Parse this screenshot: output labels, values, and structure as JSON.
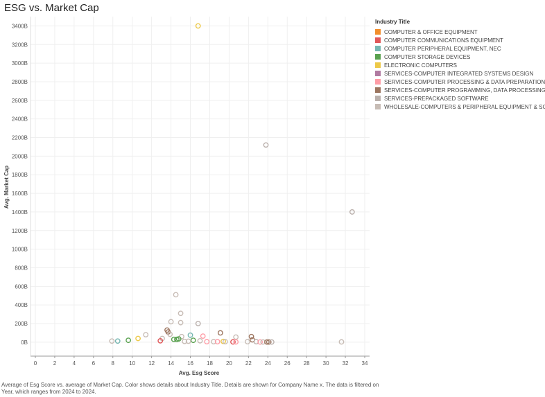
{
  "page": {
    "title": "ESG vs. Market Cap",
    "caption": "Average of Esg Score vs. average of Market Cap.  Color shows details about Industry Title.  Details are shown for Company Name x. The data is filtered on Year, which ranges from 2024 to 2024."
  },
  "legend": {
    "title": "Industry Title",
    "items": [
      {
        "label": "COMPUTER & OFFICE EQUIPMENT",
        "color": "#f28e2b"
      },
      {
        "label": "COMPUTER COMMUNICATIONS EQUIPMENT",
        "color": "#e15759"
      },
      {
        "label": "COMPUTER PERIPHERAL EQUIPMENT, NEC",
        "color": "#76b7b2"
      },
      {
        "label": "COMPUTER STORAGE DEVICES",
        "color": "#59a14f"
      },
      {
        "label": "ELECTRONIC COMPUTERS",
        "color": "#edc948"
      },
      {
        "label": "SERVICES-COMPUTER INTEGRATED SYSTEMS DESIGN",
        "color": "#b07aa1"
      },
      {
        "label": "SERVICES-COMPUTER PROCESSING & DATA PREPARATION",
        "color": "#ff9da7"
      },
      {
        "label": "SERVICES-COMPUTER PROGRAMMING, DATA PROCESSING, ETC.",
        "color": "#9c755f"
      },
      {
        "label": "SERVICES-PREPACKAGED SOFTWARE",
        "color": "#bab0ac"
      },
      {
        "label": "WHOLESALE-COMPUTERS & PERIPHERAL EQUIPMENT & SOFTWARE",
        "color": "#c7bcb5"
      }
    ]
  },
  "chart_data": {
    "type": "scatter",
    "title": "ESG vs. Market Cap",
    "xlabel": "Avg. Esg Score",
    "ylabel": "Avg. Market Cap",
    "xlim": [
      -0.5,
      34.5
    ],
    "ylim": [
      -150,
      3500
    ],
    "x_ticks": [
      0,
      2,
      4,
      6,
      8,
      10,
      12,
      14,
      16,
      18,
      20,
      22,
      24,
      26,
      28,
      30,
      32,
      34
    ],
    "x_tick_labels": [
      "0",
      "2",
      "4",
      "6",
      "8",
      "10",
      "12",
      "14",
      "16",
      "18",
      "20",
      "22",
      "24",
      "26",
      "28",
      "30",
      "32",
      "34"
    ],
    "y_ticks": [
      0,
      200,
      400,
      600,
      800,
      1000,
      1200,
      1400,
      1600,
      1800,
      2000,
      2200,
      2400,
      2600,
      2800,
      3000,
      3200,
      3400
    ],
    "y_tick_labels": [
      "0B",
      "200B",
      "400B",
      "600B",
      "800B",
      "1000B",
      "1200B",
      "1400B",
      "1600B",
      "1800B",
      "2000B",
      "2200B",
      "2400B",
      "2600B",
      "2800B",
      "3000B",
      "3200B",
      "3400B"
    ],
    "y_unit": "B",
    "grid": true,
    "legend_position": "right",
    "points": [
      {
        "x": 16.8,
        "y": 3400,
        "industry": "ELECTRONIC COMPUTERS"
      },
      {
        "x": 23.8,
        "y": 2120,
        "industry": "SERVICES-PREPACKAGED SOFTWARE"
      },
      {
        "x": 32.7,
        "y": 1400,
        "industry": "SERVICES-PREPACKAGED SOFTWARE"
      },
      {
        "x": 14.5,
        "y": 510,
        "industry": "WHOLESALE-COMPUTERS & PERIPHERAL EQUIPMENT & SOFTWARE"
      },
      {
        "x": 15.0,
        "y": 310,
        "industry": "WHOLESALE-COMPUTERS & PERIPHERAL EQUIPMENT & SOFTWARE"
      },
      {
        "x": 14.0,
        "y": 220,
        "industry": "WHOLESALE-COMPUTERS & PERIPHERAL EQUIPMENT & SOFTWARE"
      },
      {
        "x": 15.0,
        "y": 210,
        "industry": "WHOLESALE-COMPUTERS & PERIPHERAL EQUIPMENT & SOFTWARE"
      },
      {
        "x": 16.8,
        "y": 200,
        "industry": "SERVICES-PREPACKAGED SOFTWARE"
      },
      {
        "x": 13.6,
        "y": 130,
        "industry": "SERVICES-COMPUTER PROGRAMMING, DATA PROCESSING, ETC."
      },
      {
        "x": 13.7,
        "y": 110,
        "industry": "SERVICES-COMPUTER PROGRAMMING, DATA PROCESSING, ETC."
      },
      {
        "x": 19.1,
        "y": 100,
        "industry": "SERVICES-COMPUTER PROGRAMMING, DATA PROCESSING, ETC."
      },
      {
        "x": 11.4,
        "y": 80,
        "industry": "WHOLESALE-COMPUTERS & PERIPHERAL EQUIPMENT & SOFTWARE"
      },
      {
        "x": 13.9,
        "y": 85,
        "industry": "WHOLESALE-COMPUTERS & PERIPHERAL EQUIPMENT & SOFTWARE"
      },
      {
        "x": 16.0,
        "y": 75,
        "industry": "COMPUTER PERIPHERAL EQUIPMENT, NEC"
      },
      {
        "x": 17.3,
        "y": 65,
        "industry": "SERVICES-COMPUTER PROCESSING & DATA PREPARATION"
      },
      {
        "x": 15.1,
        "y": 60,
        "industry": "WHOLESALE-COMPUTERS & PERIPHERAL EQUIPMENT & SOFTWARE"
      },
      {
        "x": 22.3,
        "y": 60,
        "industry": "SERVICES-COMPUTER PROGRAMMING, DATA PROCESSING, ETC."
      },
      {
        "x": 20.7,
        "y": 55,
        "industry": "WHOLESALE-COMPUTERS & PERIPHERAL EQUIPMENT & SOFTWARE"
      },
      {
        "x": 13.1,
        "y": 40,
        "industry": "WHOLESALE-COMPUTERS & PERIPHERAL EQUIPMENT & SOFTWARE"
      },
      {
        "x": 10.6,
        "y": 40,
        "industry": "ELECTRONIC COMPUTERS"
      },
      {
        "x": 14.8,
        "y": 35,
        "industry": "COMPUTER STORAGE DEVICES"
      },
      {
        "x": 14.3,
        "y": 30,
        "industry": "COMPUTER STORAGE DEVICES"
      },
      {
        "x": 14.6,
        "y": 30,
        "industry": "COMPUTER STORAGE DEVICES"
      },
      {
        "x": 22.4,
        "y": 25,
        "industry": "SERVICES-COMPUTER PROGRAMMING, DATA PROCESSING, ETC."
      },
      {
        "x": 9.6,
        "y": 20,
        "industry": "COMPUTER STORAGE DEVICES"
      },
      {
        "x": 12.9,
        "y": 15,
        "industry": "COMPUTER COMMUNICATIONS EQUIPMENT"
      },
      {
        "x": 16.3,
        "y": 20,
        "industry": "COMPUTER STORAGE DEVICES"
      },
      {
        "x": 7.9,
        "y": 12,
        "industry": "WHOLESALE-COMPUTERS & PERIPHERAL EQUIPMENT & SOFTWARE"
      },
      {
        "x": 8.5,
        "y": 12,
        "industry": "COMPUTER PERIPHERAL EQUIPMENT, NEC"
      },
      {
        "x": 15.4,
        "y": 8,
        "industry": "WHOLESALE-COMPUTERS & PERIPHERAL EQUIPMENT & SOFTWARE"
      },
      {
        "x": 15.8,
        "y": 10,
        "industry": "WHOLESALE-COMPUTERS & PERIPHERAL EQUIPMENT & SOFTWARE"
      },
      {
        "x": 17.0,
        "y": 15,
        "industry": "WHOLESALE-COMPUTERS & PERIPHERAL EQUIPMENT & SOFTWARE"
      },
      {
        "x": 17.7,
        "y": 5,
        "industry": "SERVICES-COMPUTER PROCESSING & DATA PREPARATION"
      },
      {
        "x": 18.4,
        "y": 5,
        "industry": "WHOLESALE-COMPUTERS & PERIPHERAL EQUIPMENT & SOFTWARE"
      },
      {
        "x": 18.8,
        "y": 5,
        "industry": "SERVICES-COMPUTER PROCESSING & DATA PREPARATION"
      },
      {
        "x": 19.4,
        "y": 8,
        "industry": "ELECTRONIC COMPUTERS"
      },
      {
        "x": 19.6,
        "y": 5,
        "industry": "WHOLESALE-COMPUTERS & PERIPHERAL EQUIPMENT & SOFTWARE"
      },
      {
        "x": 20.4,
        "y": 3,
        "industry": "COMPUTER COMMUNICATIONS EQUIPMENT"
      },
      {
        "x": 20.7,
        "y": 3,
        "industry": "SERVICES-COMPUTER PROCESSING & DATA PREPARATION"
      },
      {
        "x": 21.9,
        "y": 5,
        "industry": "WHOLESALE-COMPUTERS & PERIPHERAL EQUIPMENT & SOFTWARE"
      },
      {
        "x": 22.8,
        "y": 5,
        "industry": "SERVICES-PREPACKAGED SOFTWARE"
      },
      {
        "x": 23.2,
        "y": 2,
        "industry": "SERVICES-COMPUTER PROCESSING & DATA PREPARATION"
      },
      {
        "x": 23.5,
        "y": 2,
        "industry": "WHOLESALE-COMPUTERS & PERIPHERAL EQUIPMENT & SOFTWARE"
      },
      {
        "x": 23.9,
        "y": 2,
        "industry": "SERVICES-COMPUTER PROGRAMMING, DATA PROCESSING, ETC."
      },
      {
        "x": 24.1,
        "y": 2,
        "industry": "SERVICES-COMPUTER PROGRAMMING, DATA PROCESSING, ETC."
      },
      {
        "x": 24.4,
        "y": 2,
        "industry": "SERVICES-PREPACKAGED SOFTWARE"
      },
      {
        "x": 31.6,
        "y": 3,
        "industry": "WHOLESALE-COMPUTERS & PERIPHERAL EQUIPMENT & SOFTWARE"
      }
    ]
  }
}
